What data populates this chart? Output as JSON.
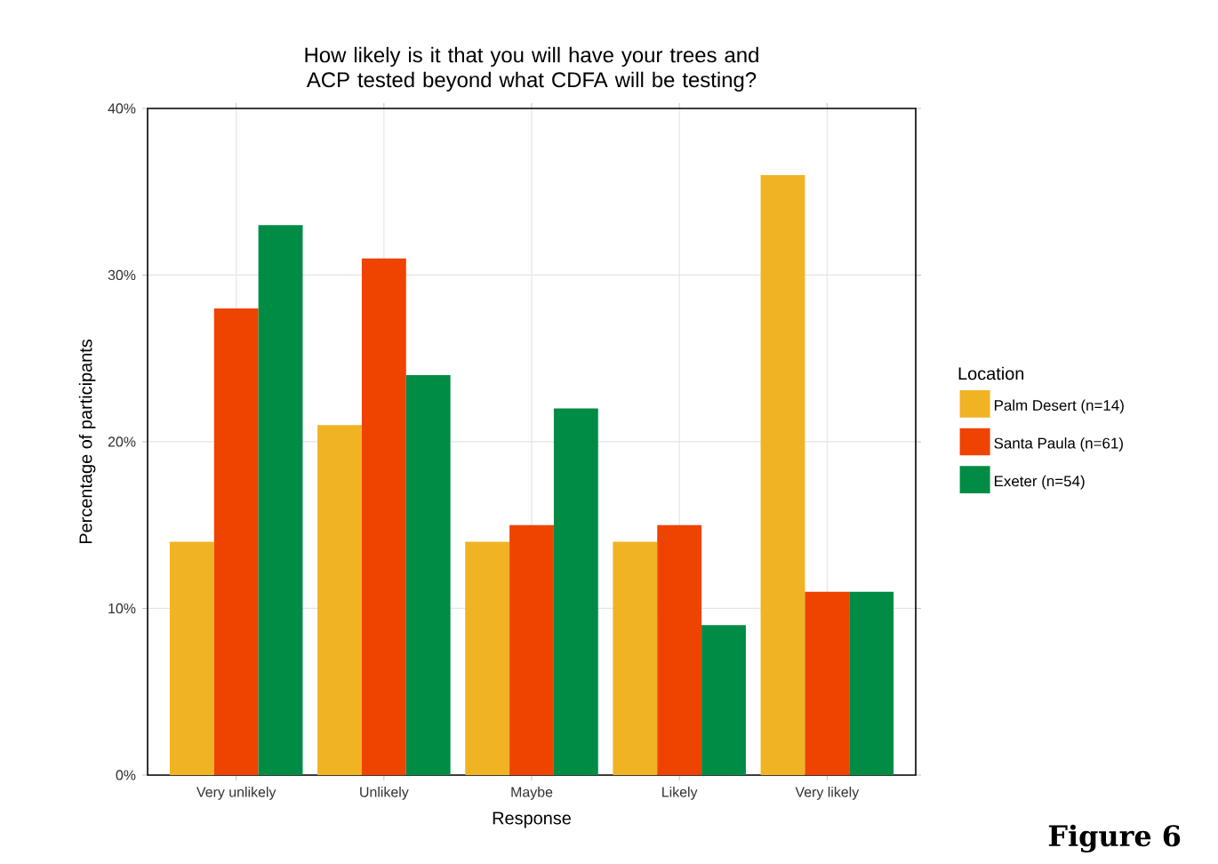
{
  "chart_data": {
    "type": "bar",
    "title": "How likely is it that you will have your trees and ACP tested beyond what CDFA will be testing?",
    "xlabel": "Response",
    "ylabel": "Percentage of participants",
    "legend_title": "Location",
    "categories": [
      "Very unlikely",
      "Unlikely",
      "Maybe",
      "Likely",
      "Very likely"
    ],
    "series": [
      {
        "name": "Palm Desert (n=14)",
        "color": "#f0b323",
        "values": [
          14,
          21,
          14,
          14,
          36
        ]
      },
      {
        "name": "Santa Paula (n=61)",
        "color": "#ef4300",
        "values": [
          28,
          31,
          15,
          15,
          11
        ]
      },
      {
        "name": "Exeter (n=54)",
        "color": "#008c45",
        "values": [
          33,
          24,
          22,
          9,
          11
        ]
      }
    ],
    "ylim": [
      0,
      40
    ],
    "yticks": [
      {
        "value": 0,
        "label": "0%"
      },
      {
        "value": 10,
        "label": "10%"
      },
      {
        "value": 20,
        "label": "20%"
      },
      {
        "value": 30,
        "label": "30%"
      },
      {
        "value": 40,
        "label": "40%"
      }
    ],
    "grid": true,
    "legend": "right",
    "annotations": [
      "Figure 6"
    ]
  }
}
